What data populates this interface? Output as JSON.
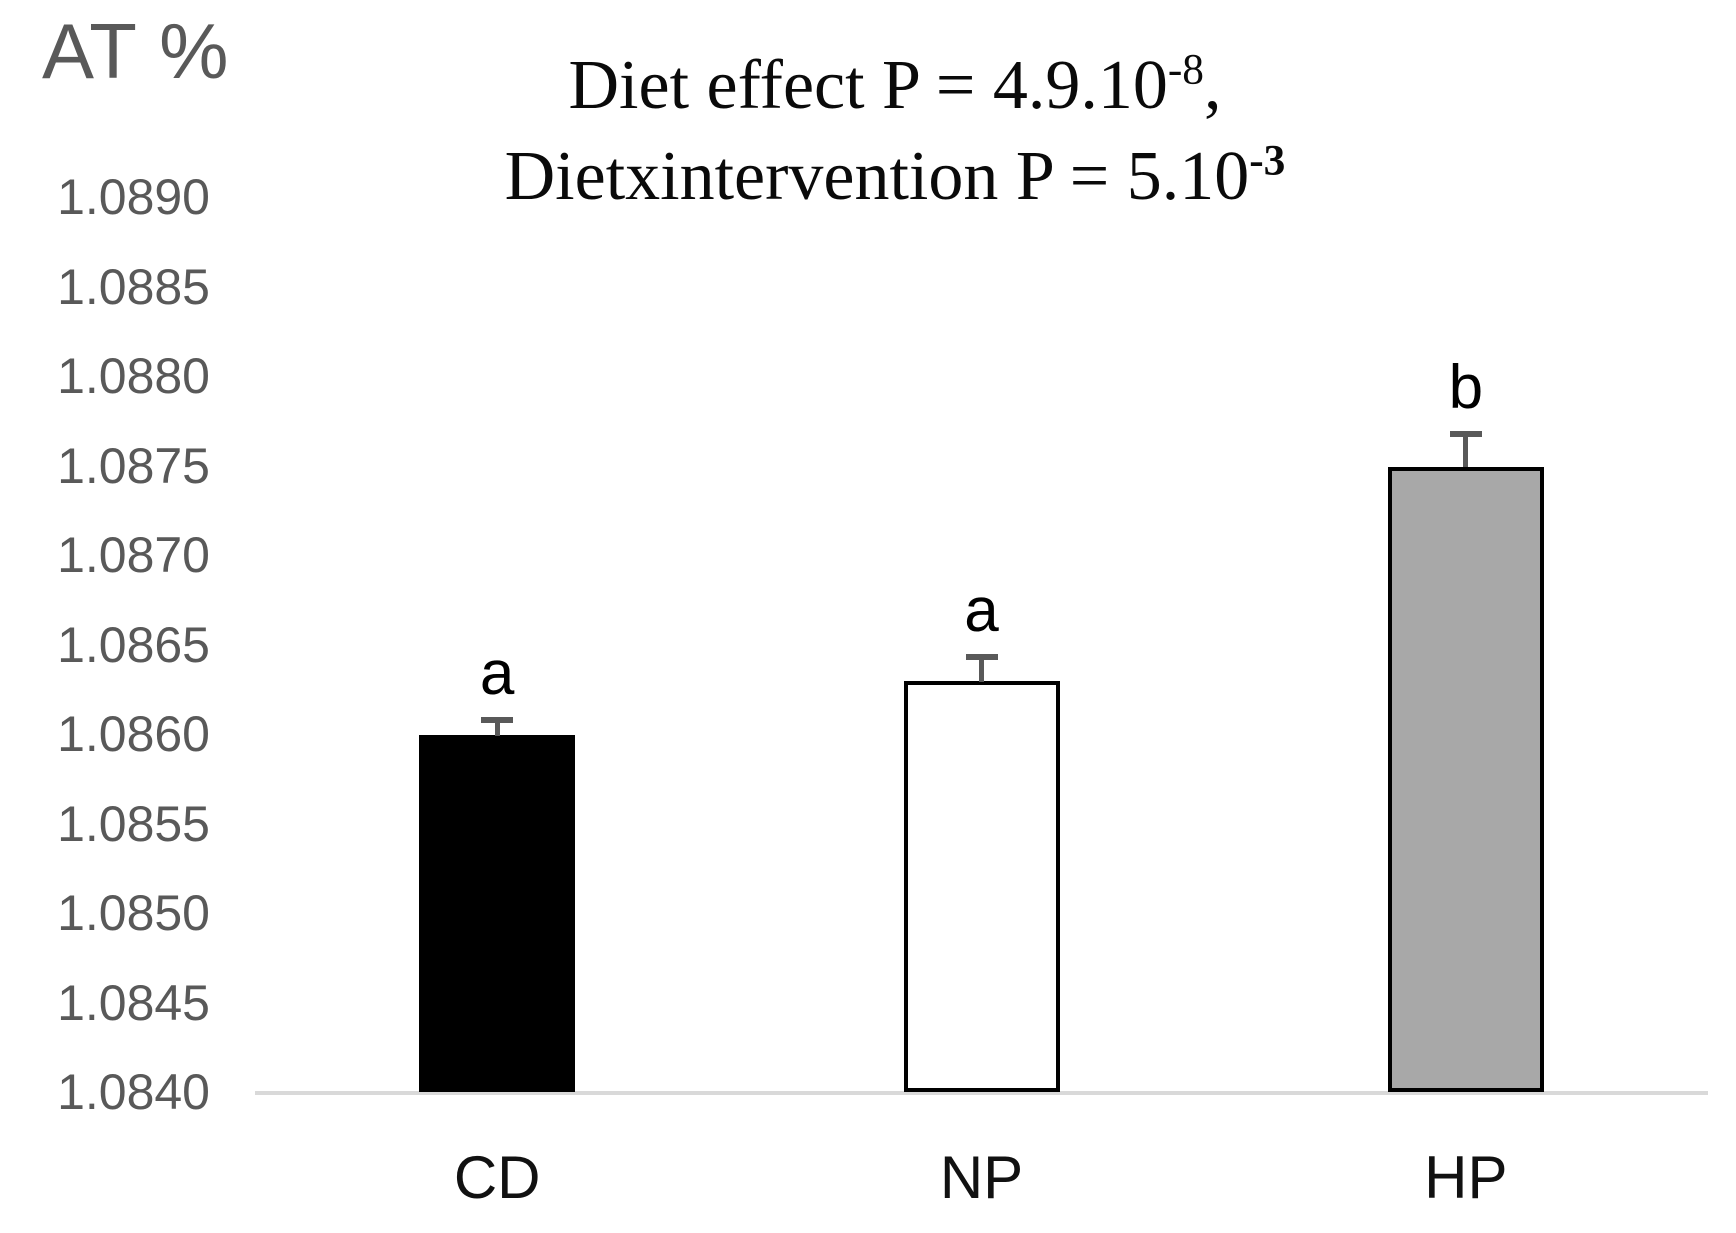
{
  "figure": {
    "y_axis_unit_label": "AT %"
  },
  "title": {
    "line1_main": "Diet effect P = 4.9.10",
    "line1_sup": "-8",
    "line1_tail": ",",
    "line2_main": "Dietxintervention P = 5.10",
    "line2_sup": "-3"
  },
  "chart_data": {
    "type": "bar",
    "title": "Diet effect P = 4.9.10^-8, Dietxintervention P = 5.10^-3",
    "ylabel": "AT %",
    "xlabel": "",
    "categories": [
      "CD",
      "NP",
      "HP"
    ],
    "values": [
      1.086,
      1.0863,
      1.0875
    ],
    "errors_plus": [
      0.0001,
      0.00015,
      0.0002
    ],
    "significance_letters": [
      "a",
      "a",
      "b"
    ],
    "bar_fill_colors": [
      "#000000",
      "#ffffff",
      "#a8a8a8"
    ],
    "bar_border_color": "#000000",
    "error_bar_color": "#595959",
    "axis_line_color": "#d9d9d9",
    "tick_label_color": "#595959",
    "x_label_color": "#111111",
    "ylim": [
      1.084,
      1.089
    ],
    "ytick_step": 0.0005,
    "ytick_labels": [
      "1.0890",
      "1.0885",
      "1.0880",
      "1.0875",
      "1.0870",
      "1.0865",
      "1.0860",
      "1.0855",
      "1.0850",
      "1.0845",
      "1.0840"
    ],
    "grid": false,
    "legend": false
  }
}
